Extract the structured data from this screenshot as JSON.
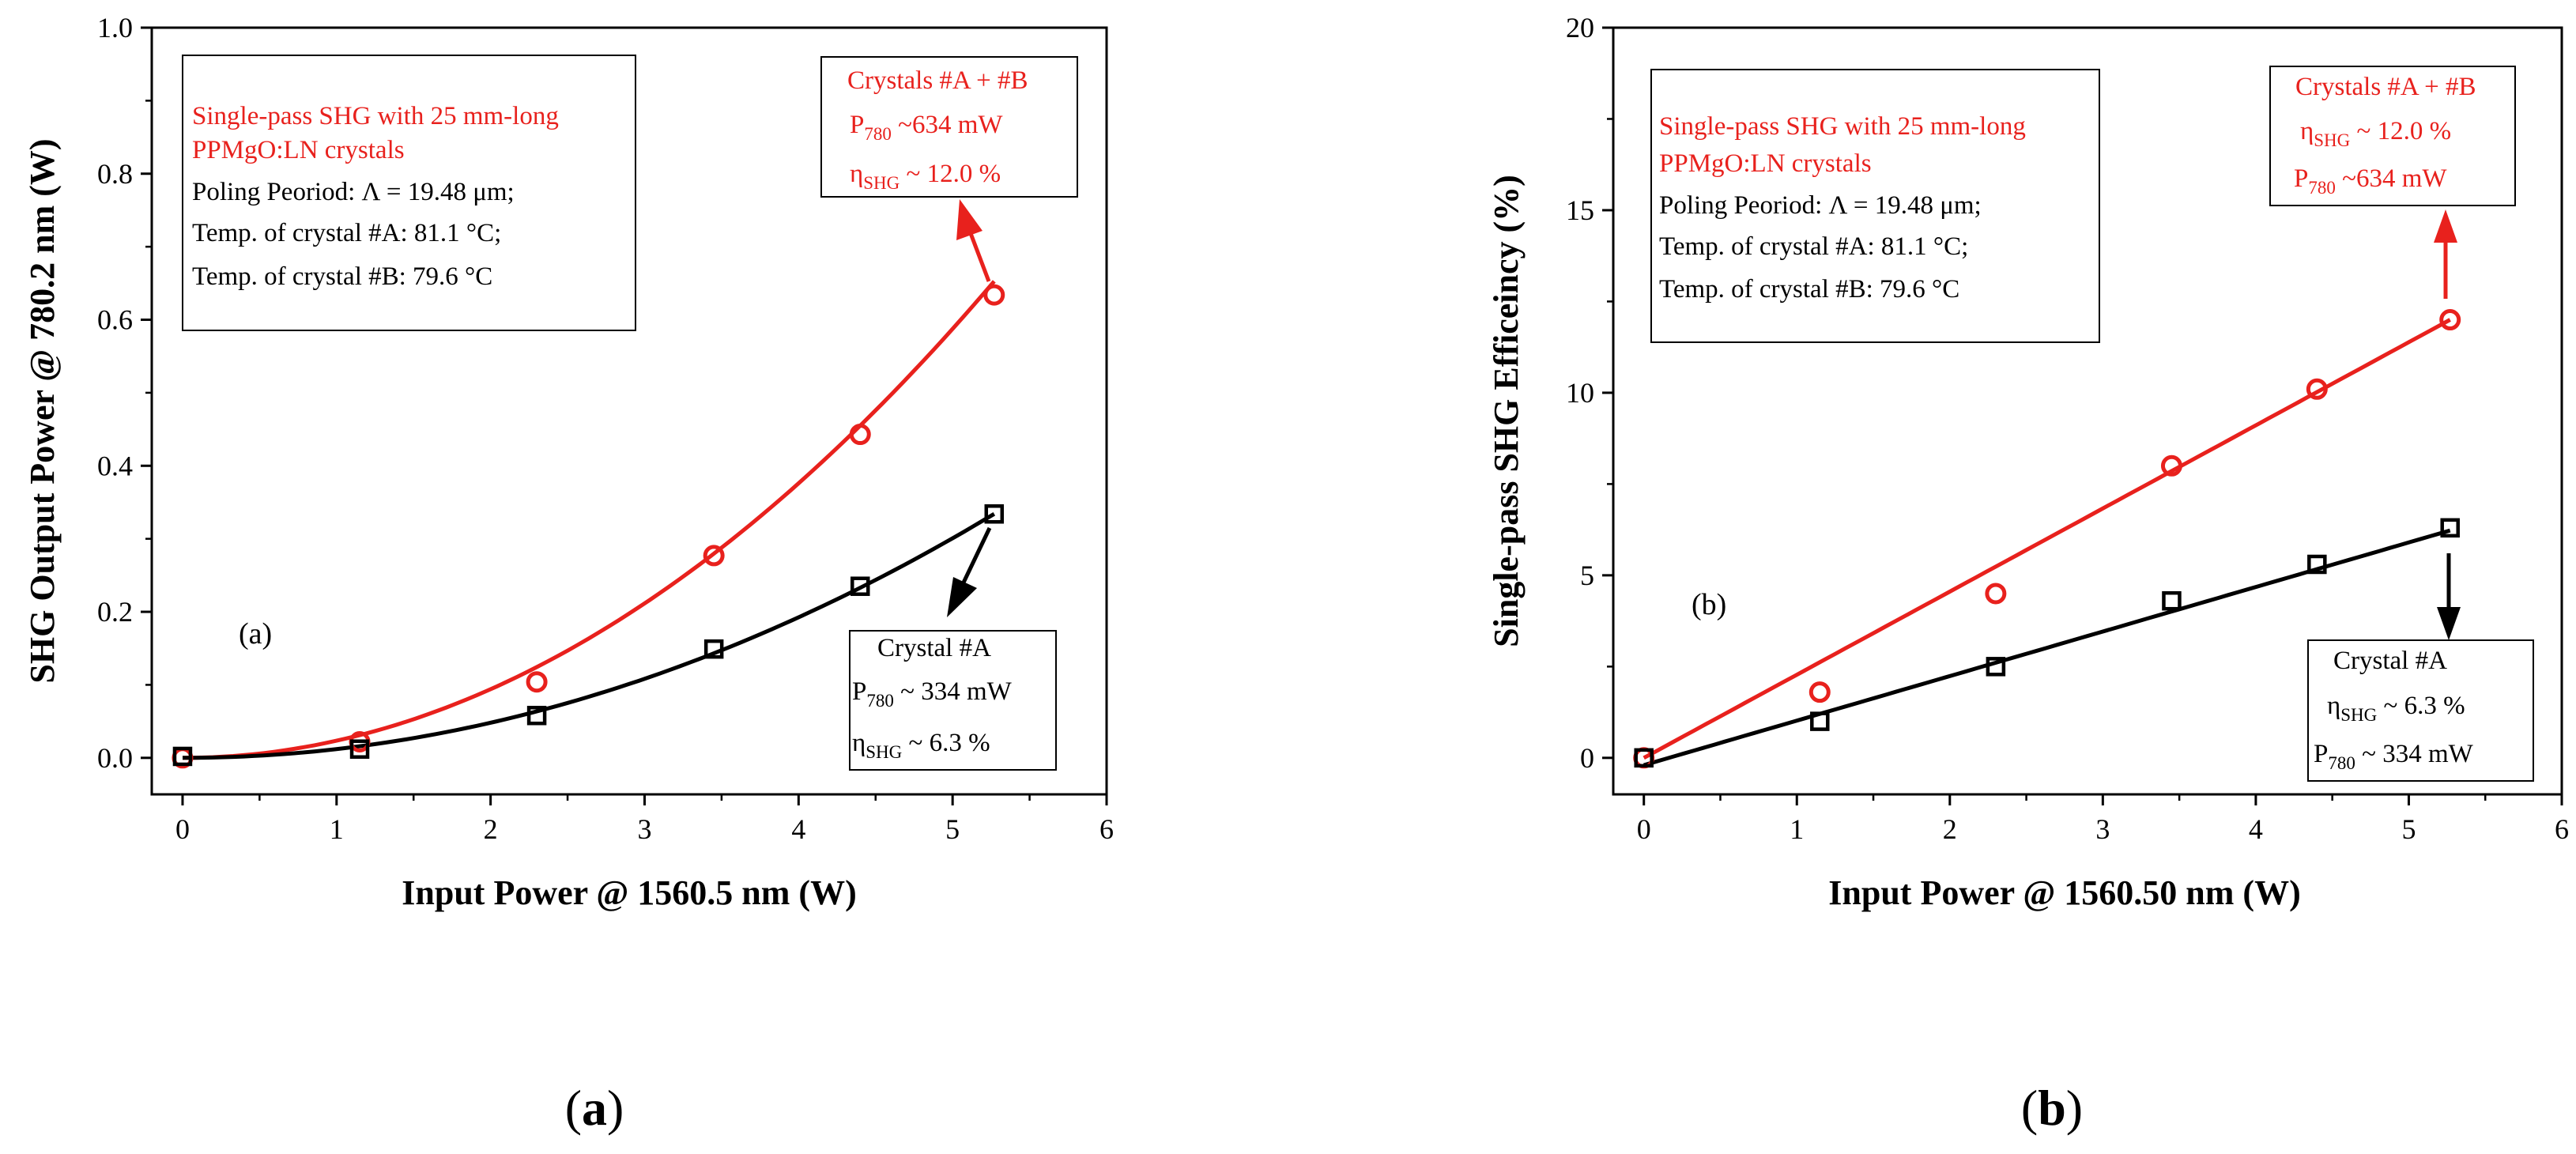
{
  "chart_data": [
    {
      "type": "scatter",
      "panel_tag": "(a)",
      "caption": "a",
      "xlabel": "Input Power @ 1560.5 nm (W)",
      "ylabel": "SHG Output Power @ 780.2 nm  (W)",
      "xlim": [
        -0.2,
        6
      ],
      "ylim": [
        -0.05,
        1.0
      ],
      "x_ticks": [
        "0",
        "1",
        "2",
        "3",
        "4",
        "5",
        "6"
      ],
      "y_ticks": [
        "0.0",
        "0.2",
        "0.4",
        "0.6",
        "0.8",
        "1.0"
      ],
      "series": [
        {
          "name": "Crystals #A + #B",
          "color": "#e8211d",
          "marker": "circle",
          "x": [
            0,
            1.15,
            2.3,
            3.45,
            4.4,
            5.27
          ],
          "y": [
            0.0,
            0.022,
            0.104,
            0.277,
            0.443,
            0.634
          ],
          "fit": {
            "kind": "power",
            "coef": 0.0235,
            "exp": 2.0,
            "x_end": 5.27
          }
        },
        {
          "name": "Crystal #A",
          "color": "#000000",
          "marker": "square",
          "x": [
            0,
            1.15,
            2.3,
            3.45,
            4.4,
            5.27
          ],
          "y": [
            0.002,
            0.012,
            0.058,
            0.149,
            0.235,
            0.334
          ],
          "fit": {
            "kind": "power",
            "coef": 0.01203,
            "exp": 2.0,
            "x_end": 5.27
          }
        }
      ],
      "info_box": {
        "line1": "Single-pass SHG with 25 mm-long",
        "line2": "PPMgO:LN crystals",
        "line3": "Poling Peoriod:  Λ = 19.48  μm;",
        "line4": "Temp. of crystal #A: 81.1 °C;",
        "line5": "Temp. of crystal #B: 79.6 °C"
      },
      "callout_red": {
        "title": "Crystals #A + #B",
        "power_sym": "P",
        "power_sub": "780",
        "power_val": "  ~634 mW",
        "eff_sym": "η",
        "eff_sub": "SHG",
        "eff_val": " ~ 12.0 %"
      },
      "callout_black": {
        "title": "Crystal  #A",
        "power_sym": "P",
        "power_sub": "780",
        "power_val": " ~ 334 mW",
        "eff_sym": "η",
        "eff_sub": "SHG",
        "eff_val": " ~ 6.3 %"
      }
    },
    {
      "type": "scatter",
      "panel_tag": "(b)",
      "caption": "b",
      "xlabel": "Input Power @ 1560.50 nm (W)",
      "ylabel": "Single-pass SHG Efficeincy (%)",
      "xlim": [
        -0.2,
        6
      ],
      "ylim": [
        -1,
        20
      ],
      "x_ticks": [
        "0",
        "1",
        "2",
        "3",
        "4",
        "5",
        "6"
      ],
      "y_ticks": [
        "0",
        "5",
        "10",
        "15",
        "20"
      ],
      "series": [
        {
          "name": "Crystals #A + #B",
          "color": "#e8211d",
          "marker": "circle",
          "x": [
            0,
            1.15,
            2.3,
            3.45,
            4.4,
            5.27
          ],
          "y": [
            0.0,
            1.8,
            4.5,
            8.0,
            10.1,
            12.0
          ],
          "fit": {
            "kind": "linear",
            "slope": 2.277,
            "intercept": 0.0,
            "x_end": 5.27
          }
        },
        {
          "name": "Crystal #A",
          "color": "#000000",
          "marker": "square",
          "x": [
            0,
            1.15,
            2.3,
            3.45,
            4.4,
            5.27
          ],
          "y": [
            0.0,
            1.0,
            2.5,
            4.3,
            5.3,
            6.3
          ],
          "fit": {
            "kind": "linear",
            "slope": 1.22,
            "intercept": -0.2,
            "x_end": 5.27
          }
        }
      ],
      "info_box": {
        "line1": "Single-pass SHG with 25 mm-long",
        "line2": "PPMgO:LN crystals",
        "line3": "Poling Peoriod:  Λ = 19.48  μm;",
        "line4": "Temp. of crystal #A: 81.1 °C;",
        "line5": "Temp. of crystal #B: 79.6 °C"
      },
      "callout_red": {
        "title": "Crystals #A + #B",
        "eff_sym": "η",
        "eff_sub": "SHG",
        "eff_val": " ~ 12.0 %",
        "power_sym": "P",
        "power_sub": "780",
        "power_val": "  ~634 mW"
      },
      "callout_black": {
        "title": "Crystal  #A",
        "eff_sym": "η",
        "eff_sub": "SHG",
        "eff_val": " ~ 6.3 %",
        "power_sym": "P",
        "power_sub": "780",
        "power_val": " ~ 334 mW"
      }
    }
  ]
}
